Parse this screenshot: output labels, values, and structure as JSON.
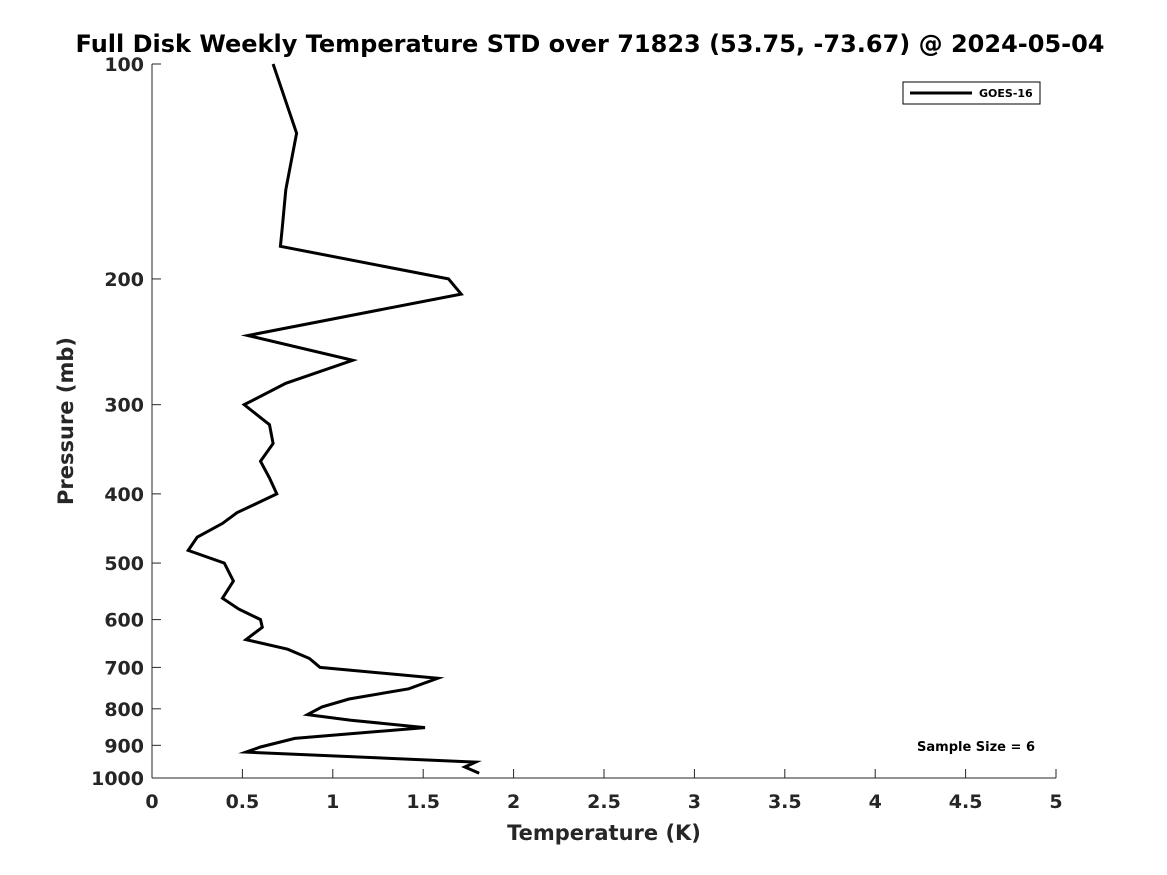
{
  "chart_data": {
    "type": "line",
    "title": "Full Disk Weekly Temperature STD over 71823 (53.75, -73.67) @ 2024-05-04",
    "xlabel": "Temperature (K)",
    "ylabel": "Pressure (mb)",
    "xlim": [
      0,
      5
    ],
    "ylim": [
      100,
      1000
    ],
    "y_scale": "log",
    "y_reversed": true,
    "grid": false,
    "legend_position": "top-right",
    "x_ticks": [
      "0",
      "0.5",
      "1",
      "1.5",
      "2",
      "2.5",
      "3",
      "3.5",
      "4",
      "4.5",
      "5"
    ],
    "y_ticks": [
      "100",
      "200",
      "300",
      "400",
      "500",
      "600",
      "700",
      "800",
      "900",
      "1000"
    ],
    "series": [
      {
        "name": "GOES-16",
        "color": "#000000",
        "points": [
          [
            0.67,
            100
          ],
          [
            0.8,
            125
          ],
          [
            0.74,
            150
          ],
          [
            0.72,
            170
          ],
          [
            0.71,
            180
          ],
          [
            1.64,
            200
          ],
          [
            1.71,
            210
          ],
          [
            0.53,
            240
          ],
          [
            1.11,
            260
          ],
          [
            0.74,
            280
          ],
          [
            0.51,
            300
          ],
          [
            0.65,
            320
          ],
          [
            0.67,
            340
          ],
          [
            0.6,
            360
          ],
          [
            0.65,
            380
          ],
          [
            0.69,
            400
          ],
          [
            0.47,
            425
          ],
          [
            0.39,
            440
          ],
          [
            0.25,
            460
          ],
          [
            0.2,
            480
          ],
          [
            0.4,
            500
          ],
          [
            0.45,
            530
          ],
          [
            0.39,
            560
          ],
          [
            0.48,
            580
          ],
          [
            0.6,
            600
          ],
          [
            0.61,
            615
          ],
          [
            0.52,
            640
          ],
          [
            0.75,
            660
          ],
          [
            0.87,
            680
          ],
          [
            0.93,
            700
          ],
          [
            1.58,
            725
          ],
          [
            1.42,
            750
          ],
          [
            1.09,
            775
          ],
          [
            0.94,
            795
          ],
          [
            0.86,
            815
          ],
          [
            1.1,
            830
          ],
          [
            1.51,
            850
          ],
          [
            0.79,
            880
          ],
          [
            0.6,
            905
          ],
          [
            0.52,
            920
          ],
          [
            1.79,
            950
          ],
          [
            1.73,
            965
          ],
          [
            1.81,
            985
          ]
        ]
      }
    ],
    "annotation": "Sample Size = 6"
  }
}
